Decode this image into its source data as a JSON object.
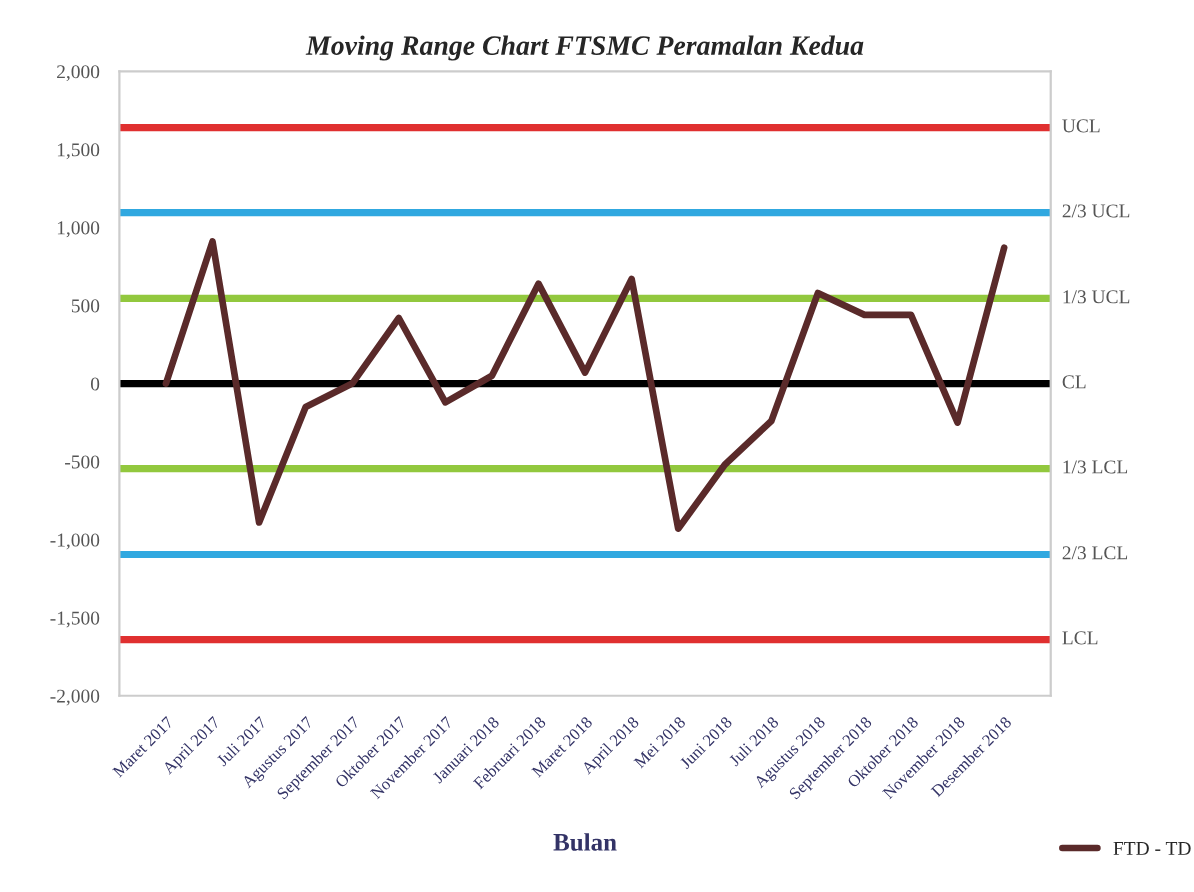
{
  "chart_data": {
    "type": "line",
    "title": "Moving Range Chart FTSMC Peramalan Kedua",
    "xlabel": "Bulan",
    "categories": [
      "Maret 2017",
      "April 2017",
      "Juli 2017",
      "Agustus 2017",
      "September 2017",
      "Oktober 2017",
      "November 2017",
      "Januari 2018",
      "Februari 2018",
      "Maret 2018",
      "April 2018",
      "Mei 2018",
      "Juni 2018",
      "Juli 2018",
      "Agustus 2018",
      "September 2018",
      "Oktober 2018",
      "November 2018",
      "Desember 2018"
    ],
    "series": [
      {
        "name": "FTD - TD",
        "color": "#5a2a2a",
        "values": [
          0,
          910,
          -890,
          -150,
          0,
          420,
          -120,
          50,
          640,
          70,
          670,
          -930,
          -520,
          -240,
          580,
          440,
          440,
          -250,
          870
        ]
      }
    ],
    "ylim": [
      -2000,
      2000
    ],
    "yticks": [
      {
        "value": -2000,
        "label": "-2,000"
      },
      {
        "value": -1500,
        "label": "-1,500"
      },
      {
        "value": -1000,
        "label": "-1,000"
      },
      {
        "value": -500,
        "label": "-500"
      },
      0,
      {
        "value": 500,
        "label": "500"
      },
      {
        "value": 1000,
        "label": "1,000"
      },
      {
        "value": 1500,
        "label": "1,500"
      },
      {
        "value": 2000,
        "label": "2,000"
      }
    ],
    "ref_lines": [
      {
        "axis": "y",
        "value": 1640,
        "label": "UCL",
        "color": "#e03030"
      },
      {
        "axis": "y",
        "value": 1095,
        "label": "2/3 UCL",
        "color": "#30a8e0"
      },
      {
        "axis": "y",
        "value": 545,
        "label": "1/3 UCL",
        "color": "#92c83e"
      },
      {
        "axis": "y",
        "value": 0,
        "label": "CL",
        "color": "#000000"
      },
      {
        "axis": "y",
        "value": -545,
        "label": "1/3 LCL",
        "color": "#92c83e"
      },
      {
        "axis": "y",
        "value": -1095,
        "label": "2/3 LCL",
        "color": "#30a8e0"
      },
      {
        "axis": "y",
        "value": -1640,
        "label": "LCL",
        "color": "#e03030"
      }
    ],
    "grid": false,
    "legend": "bottom right",
    "marker": "none",
    "line_style": "solid"
  }
}
